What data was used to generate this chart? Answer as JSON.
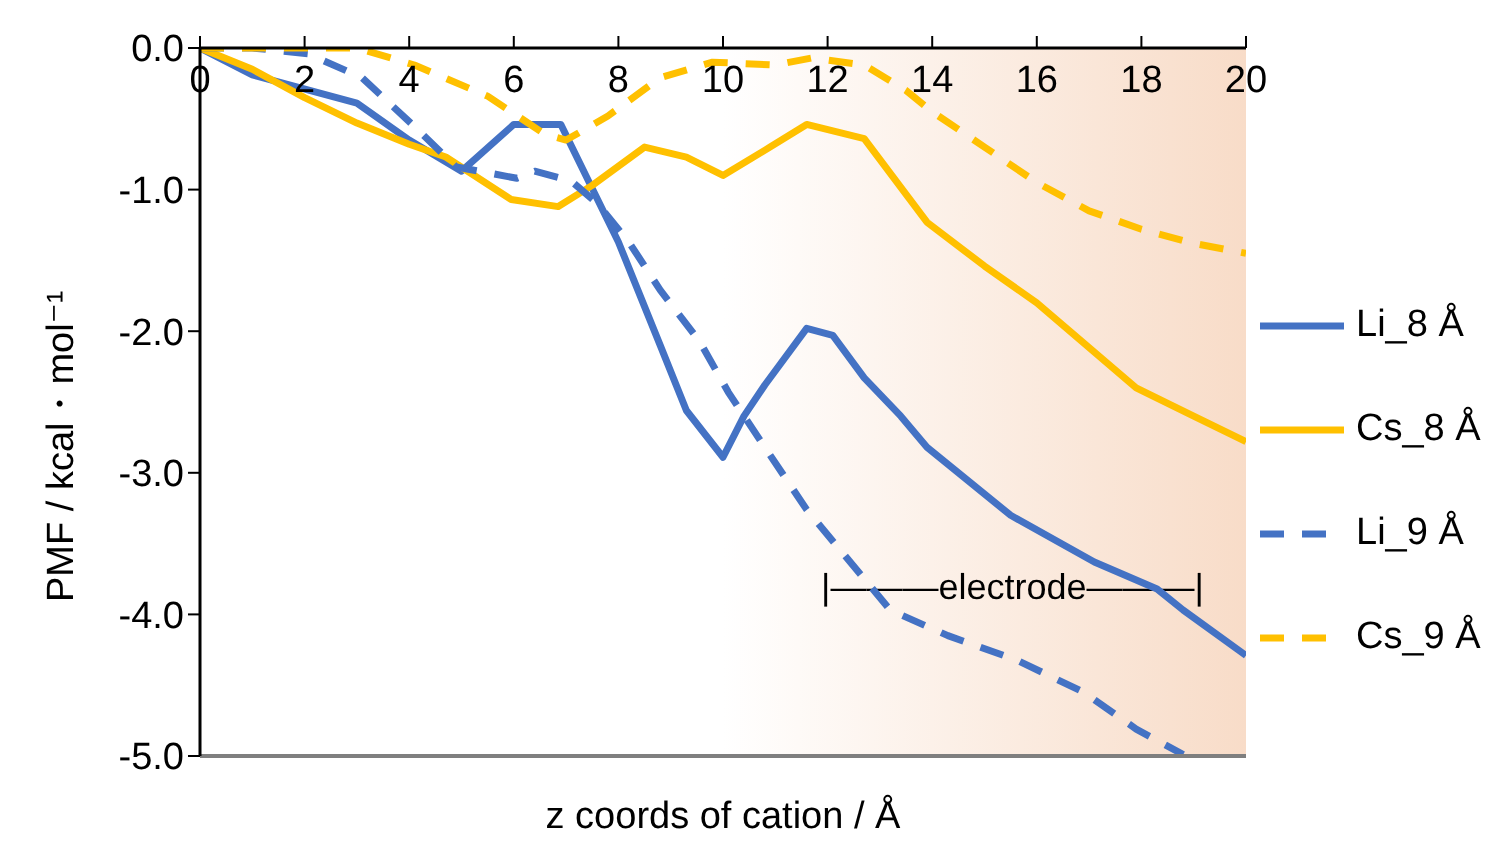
{
  "chart_data": {
    "type": "line",
    "xlabel": "z coords of cation / Å",
    "ylabel": "PMF / kcal・mol⁻¹",
    "xlim": [
      0,
      20
    ],
    "xticks": [
      0,
      2,
      4,
      6,
      8,
      10,
      12,
      14,
      16,
      18,
      20
    ],
    "ylim": [
      -5,
      0
    ],
    "yticks": [
      {
        "value": 0,
        "label": "0.0"
      },
      {
        "value": -1,
        "label": "-1.0"
      },
      {
        "value": -2,
        "label": "-2.0"
      },
      {
        "value": -3,
        "label": "-3.0"
      },
      {
        "value": -4,
        "label": "-4.0"
      },
      {
        "value": -5,
        "label": "-5.0"
      }
    ],
    "grid": false,
    "legend": "right",
    "bands": [
      {
        "axis": "x",
        "from": 10,
        "to": 20,
        "label": "|———electrode———|",
        "color": "#f8dcc8"
      }
    ],
    "series": [
      {
        "name": "Li_8 Å",
        "color": "#4472c4",
        "line_style": "solid",
        "x": [
          0,
          1,
          3,
          4,
          5,
          6,
          6.9,
          8,
          8.8,
          9.3,
          10,
          10.4,
          10.8,
          11.6,
          12.1,
          12.7,
          13.4,
          13.9,
          15.5,
          17.1,
          18.3,
          18.8,
          20
        ],
        "values": [
          0,
          -0.19,
          -0.39,
          -0.65,
          -0.87,
          -0.54,
          -0.54,
          -1.37,
          -2.1,
          -2.56,
          -2.89,
          -2.6,
          -2.38,
          -1.98,
          -2.03,
          -2.33,
          -2.6,
          -2.82,
          -3.3,
          -3.63,
          -3.82,
          -3.97,
          -4.29
        ]
      },
      {
        "name": "Cs_8 Å",
        "color": "#ffc000",
        "line_style": "solid",
        "x": [
          0,
          1,
          2,
          3,
          4,
          4.7,
          5.95,
          6.85,
          7.5,
          8.5,
          9.3,
          10,
          10.9,
          11.6,
          12.7,
          13.9,
          15,
          16,
          17.9,
          19,
          20
        ],
        "values": [
          0,
          -0.15,
          -0.35,
          -0.53,
          -0.68,
          -0.77,
          -1.07,
          -1.12,
          -0.97,
          -0.7,
          -0.77,
          -0.9,
          -0.7,
          -0.54,
          -0.64,
          -1.23,
          -1.54,
          -1.8,
          -2.4,
          -2.6,
          -2.78
        ]
      },
      {
        "name": "Li_9 Å",
        "color": "#4472c4",
        "line_style": "dashed",
        "x": [
          0,
          1,
          2.06,
          3.1,
          4,
          4.9,
          6.06,
          6.4,
          7.1,
          7.6,
          8.2,
          8.8,
          9.55,
          10.1,
          10.8,
          11.6,
          12.5,
          13.2,
          14.3,
          15.6,
          16.9,
          17.9,
          18.8
        ],
        "values": [
          0,
          0,
          -0.04,
          -0.21,
          -0.52,
          -0.84,
          -0.92,
          -0.87,
          -0.94,
          -1.1,
          -1.37,
          -1.71,
          -2.07,
          -2.43,
          -2.82,
          -3.26,
          -3.66,
          -3.97,
          -4.15,
          -4.32,
          -4.55,
          -4.81,
          -4.99
        ]
      },
      {
        "name": "Cs_9 Å",
        "color": "#ffc000",
        "line_style": "dashed",
        "x": [
          0,
          2,
          3,
          4.1,
          5.5,
          6.6,
          7,
          7.8,
          8.8,
          9.8,
          11,
          11.7,
          12.7,
          13.5,
          14,
          15,
          16,
          17,
          18,
          19,
          20
        ],
        "values": [
          0,
          0,
          0,
          -0.12,
          -0.34,
          -0.61,
          -0.65,
          -0.48,
          -0.21,
          -0.1,
          -0.12,
          -0.07,
          -0.12,
          -0.3,
          -0.45,
          -0.7,
          -0.95,
          -1.15,
          -1.28,
          -1.38,
          -1.45
        ]
      }
    ]
  }
}
